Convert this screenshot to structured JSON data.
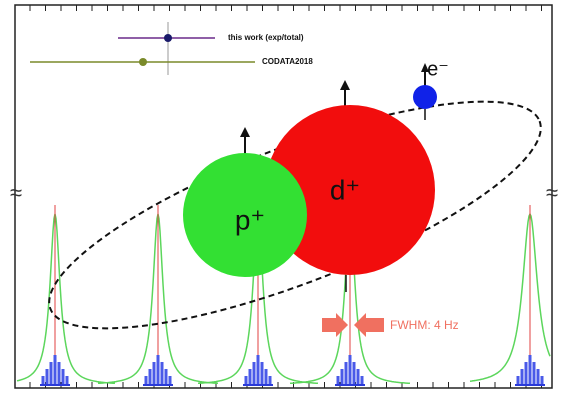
{
  "legend": {
    "entries": [
      {
        "label": "this work (exp/total)"
      },
      {
        "label": "CODATA2018"
      }
    ]
  },
  "particles": {
    "electron": "e⁻",
    "proton": "p⁺",
    "deuteron": "d⁺"
  },
  "annotation": "FWHM: 4 Hz"
}
